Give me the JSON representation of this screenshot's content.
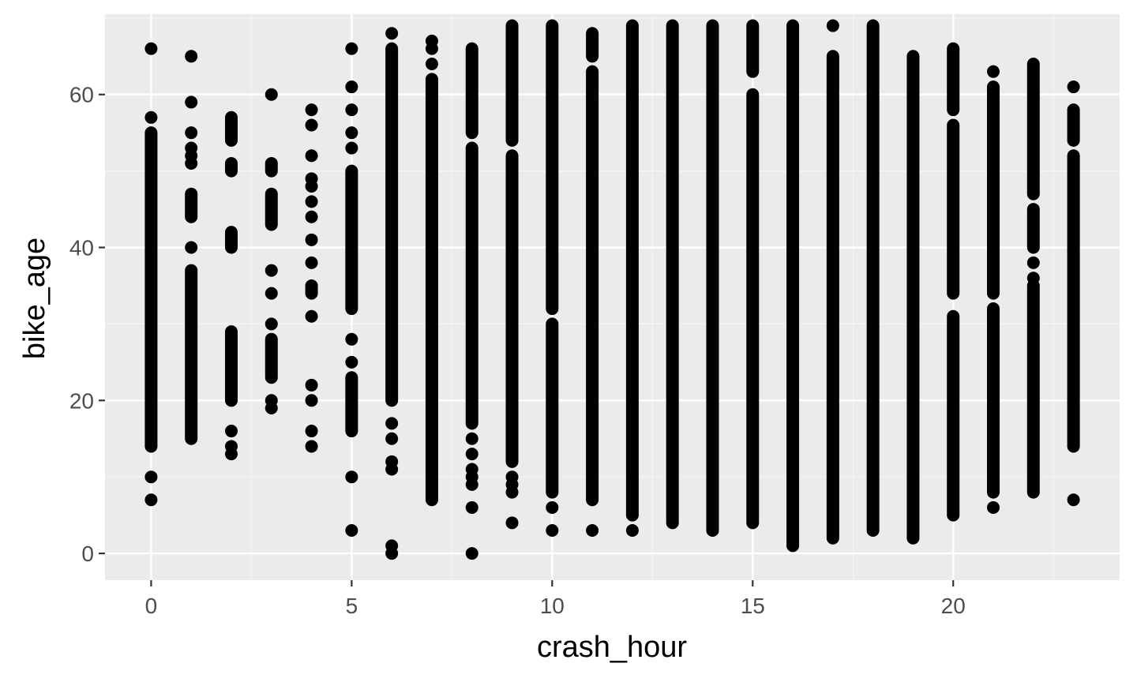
{
  "chart_data": {
    "type": "scatter",
    "title": "",
    "xlabel": "crash_hour",
    "ylabel": "bike_age",
    "xlim": [
      -1.15,
      24.15
    ],
    "ylim": [
      -3.5,
      70.5
    ],
    "x_ticks": [
      0,
      5,
      10,
      15,
      20
    ],
    "y_ticks": [
      0,
      20,
      40,
      60
    ],
    "grid": true,
    "legend": "none",
    "colors": {
      "panel_background": "#ebebeb",
      "grid_major": "#ffffff",
      "grid_minor": "#f5f5f5",
      "point": "#000000",
      "tick_mark": "#333333"
    },
    "columns": [
      {
        "x": 0,
        "ranges": [
          [
            14,
            55
          ]
        ],
        "points": [
          57,
          66,
          10,
          7
        ]
      },
      {
        "x": 1,
        "ranges": [
          [
            15,
            37
          ],
          [
            44,
            47
          ]
        ],
        "points": [
          65,
          59,
          55,
          53,
          52,
          51,
          40
        ]
      },
      {
        "x": 2,
        "ranges": [
          [
            20,
            29
          ],
          [
            40,
            42
          ],
          [
            50,
            51
          ],
          [
            54,
            57
          ]
        ],
        "points": [
          16,
          14,
          13
        ]
      },
      {
        "x": 3,
        "ranges": [
          [
            23,
            28
          ],
          [
            43,
            47
          ],
          [
            50,
            51
          ]
        ],
        "points": [
          60,
          37,
          34,
          30,
          20,
          19
        ]
      },
      {
        "x": 4,
        "ranges": [
          [
            34,
            35
          ]
        ],
        "points": [
          58,
          56,
          52,
          49,
          48,
          46,
          44,
          41,
          38,
          31,
          22,
          20,
          16,
          14
        ]
      },
      {
        "x": 5,
        "ranges": [
          [
            16,
            23
          ],
          [
            32,
            50
          ]
        ],
        "points": [
          66,
          61,
          58,
          55,
          53,
          28,
          25,
          10,
          3
        ]
      },
      {
        "x": 6,
        "ranges": [
          [
            20,
            66
          ],
          [
            0,
            0
          ]
        ],
        "points": [
          68,
          17,
          15,
          12,
          11,
          1
        ]
      },
      {
        "x": 7,
        "ranges": [
          [
            7,
            62
          ]
        ],
        "points": [
          67,
          66,
          64
        ]
      },
      {
        "x": 8,
        "ranges": [
          [
            17,
            53
          ],
          [
            55,
            66
          ]
        ],
        "points": [
          15,
          13,
          11,
          10,
          9,
          6,
          0
        ]
      },
      {
        "x": 9,
        "ranges": [
          [
            12,
            52
          ],
          [
            54,
            69
          ]
        ],
        "points": [
          10,
          9,
          8,
          4
        ]
      },
      {
        "x": 10,
        "ranges": [
          [
            8,
            30
          ],
          [
            32,
            69
          ]
        ],
        "points": [
          6,
          3
        ]
      },
      {
        "x": 11,
        "ranges": [
          [
            7,
            63
          ],
          [
            65,
            68
          ]
        ],
        "points": [
          3
        ]
      },
      {
        "x": 12,
        "ranges": [
          [
            5,
            69
          ]
        ],
        "points": [
          3
        ]
      },
      {
        "x": 13,
        "ranges": [
          [
            4,
            69
          ]
        ],
        "points": []
      },
      {
        "x": 14,
        "ranges": [
          [
            3,
            69
          ]
        ],
        "points": []
      },
      {
        "x": 15,
        "ranges": [
          [
            4,
            60
          ],
          [
            63,
            69
          ]
        ],
        "points": []
      },
      {
        "x": 16,
        "ranges": [
          [
            1,
            69
          ]
        ],
        "points": []
      },
      {
        "x": 17,
        "ranges": [
          [
            2,
            65
          ]
        ],
        "points": [
          69
        ]
      },
      {
        "x": 18,
        "ranges": [
          [
            3,
            69
          ]
        ],
        "points": []
      },
      {
        "x": 19,
        "ranges": [
          [
            2,
            65
          ]
        ],
        "points": []
      },
      {
        "x": 20,
        "ranges": [
          [
            5,
            31
          ],
          [
            34,
            56
          ],
          [
            58,
            66
          ]
        ],
        "points": []
      },
      {
        "x": 21,
        "ranges": [
          [
            8,
            32
          ],
          [
            34,
            61
          ]
        ],
        "points": [
          63,
          6
        ]
      },
      {
        "x": 22,
        "ranges": [
          [
            8,
            35
          ],
          [
            40,
            45
          ],
          [
            47,
            64
          ]
        ],
        "points": [
          38,
          36
        ]
      },
      {
        "x": 23,
        "ranges": [
          [
            14,
            52
          ],
          [
            54,
            58
          ]
        ],
        "points": [
          61,
          7
        ]
      }
    ]
  }
}
